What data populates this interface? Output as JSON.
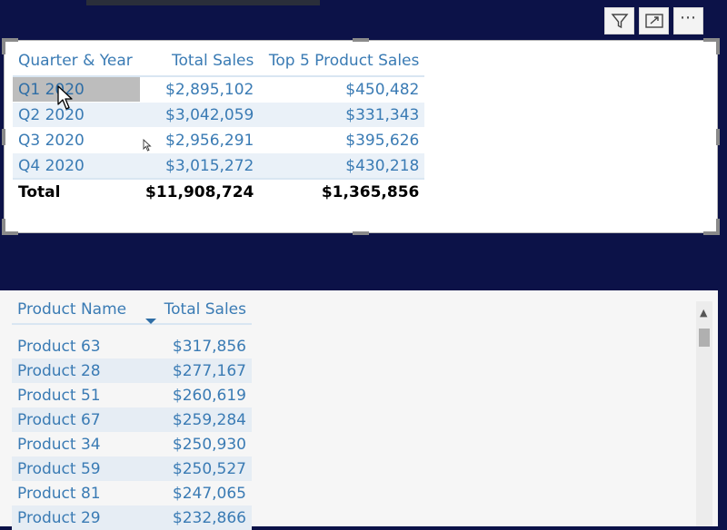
{
  "toolbar": {
    "filter_icon": "filter-icon",
    "focus_icon": "focus-mode-icon",
    "more_label": "⋯"
  },
  "quarter_table": {
    "headers": [
      "Quarter & Year",
      "Total Sales",
      "Top 5 Product Sales"
    ],
    "rows": [
      {
        "quarter": "Q1 2020",
        "total_sales": "$2,895,102",
        "top5_sales": "$450,482"
      },
      {
        "quarter": "Q2 2020",
        "total_sales": "$3,042,059",
        "top5_sales": "$331,343"
      },
      {
        "quarter": "Q3 2020",
        "total_sales": "$2,956,291",
        "top5_sales": "$395,626"
      },
      {
        "quarter": "Q4 2020",
        "total_sales": "$3,015,272",
        "top5_sales": "$430,218"
      }
    ],
    "total": {
      "label": "Total",
      "total_sales": "$11,908,724",
      "top5_sales": "$1,365,856"
    }
  },
  "product_table": {
    "headers": [
      "Product Name",
      "Total Sales"
    ],
    "rows": [
      {
        "product": "Product 63",
        "total_sales": "$317,856"
      },
      {
        "product": "Product 28",
        "total_sales": "$277,167"
      },
      {
        "product": "Product 51",
        "total_sales": "$260,619"
      },
      {
        "product": "Product 67",
        "total_sales": "$259,284"
      },
      {
        "product": "Product 34",
        "total_sales": "$250,930"
      },
      {
        "product": "Product 59",
        "total_sales": "$250,527"
      },
      {
        "product": "Product 81",
        "total_sales": "$247,065"
      },
      {
        "product": "Product 29",
        "total_sales": "$232,866"
      }
    ]
  },
  "colors": {
    "canvas_bg": "#0c1248",
    "header_text": "#3a7bb4",
    "row_alt": "#eaf1f8",
    "selected_cell": "#bdbdbd"
  }
}
